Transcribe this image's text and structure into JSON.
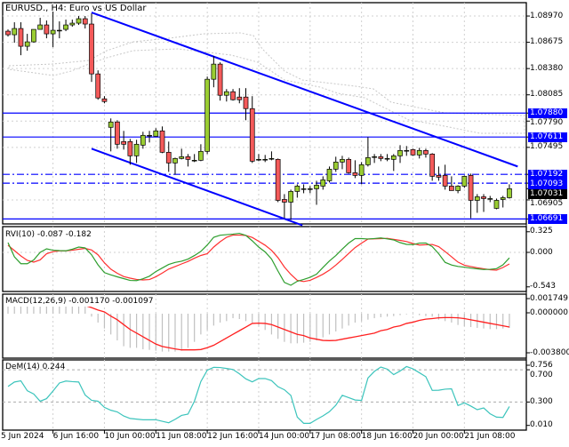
{
  "title": "EURUSD., H4:  Euro vs US Dollar",
  "colors": {
    "bull": "#9acd32",
    "bear": "#f45a5a",
    "trend": "#0000ff",
    "rvi_main": "#2e9e2e",
    "rvi_signal": "#ff3030",
    "macd_hist": "#c0c0c0",
    "macd_signal": "#ff2020",
    "dem": "#3cc4bc",
    "grid": "#d0d0d0",
    "cloud": "#c8c8c8"
  },
  "chart_data": [
    {
      "type": "candlestick",
      "name": "EURUSD., H4",
      "ohlc": [
        [
          1.088,
          1.0882,
          1.0874,
          1.0876
        ],
        [
          1.0876,
          1.089,
          1.0867,
          1.0883
        ],
        [
          1.0883,
          1.089,
          1.0853,
          1.0863
        ],
        [
          1.0863,
          1.0877,
          1.0858,
          1.0868
        ],
        [
          1.0868,
          1.0882,
          1.0867,
          1.0882
        ],
        [
          1.0882,
          1.0895,
          1.0882,
          1.0887
        ],
        [
          1.0887,
          1.0892,
          1.0872,
          1.0877
        ],
        [
          1.0877,
          1.0902,
          1.0862,
          1.0881
        ],
        [
          1.0881,
          1.0891,
          1.0872,
          1.0881
        ],
        [
          1.0882,
          1.0893,
          1.088,
          1.0887
        ],
        [
          1.0887,
          1.0893,
          1.0885,
          1.0889
        ],
        [
          1.0889,
          1.0897,
          1.0887,
          1.0894
        ],
        [
          1.0894,
          1.0897,
          1.0883,
          1.0888
        ],
        [
          1.0888,
          1.09,
          1.0823,
          1.0832
        ],
        [
          1.0832,
          1.0836,
          1.0803,
          1.0805
        ],
        [
          1.0804,
          1.0807,
          1.0799,
          1.0801
        ],
        [
          1.0772,
          1.0782,
          1.0745,
          1.0778
        ],
        [
          1.0778,
          1.078,
          1.0748,
          1.0753
        ],
        [
          1.0756,
          1.0768,
          1.0747,
          1.0753
        ],
        [
          1.0756,
          1.0759,
          1.073,
          1.074
        ],
        [
          1.074,
          1.0758,
          1.0732,
          1.0753
        ],
        [
          1.0752,
          1.0767,
          1.0748,
          1.0763
        ],
        [
          1.0763,
          1.0768,
          1.0755,
          1.0763
        ],
        [
          1.0762,
          1.0771,
          1.0762,
          1.0768
        ],
        [
          1.0768,
          1.0773,
          1.0743,
          1.0744
        ],
        [
          1.0744,
          1.0756,
          1.0722,
          1.0732
        ],
        [
          1.0732,
          1.0738,
          1.0719,
          1.0737
        ],
        [
          1.0737,
          1.0748,
          1.0736,
          1.0739
        ],
        [
          1.0739,
          1.0742,
          1.0728,
          1.0736
        ],
        [
          1.0735,
          1.0742,
          1.0733,
          1.0735
        ],
        [
          1.0735,
          1.0753,
          1.0734,
          1.0745
        ],
        [
          1.0745,
          1.0829,
          1.0742,
          1.0826
        ],
        [
          1.0826,
          1.0852,
          1.0817,
          1.0843
        ],
        [
          1.0843,
          1.0845,
          1.0802,
          1.0808
        ],
        [
          1.0808,
          1.0815,
          1.0801,
          1.0812
        ],
        [
          1.0812,
          1.0815,
          1.0802,
          1.0803
        ],
        [
          1.0806,
          1.0816,
          1.0799,
          1.0803
        ],
        [
          1.0806,
          1.0816,
          1.078,
          1.0793
        ],
        [
          1.0793,
          1.0807,
          1.0732,
          1.0734
        ],
        [
          1.0736,
          1.0742,
          1.0734,
          1.0736
        ],
        [
          1.0736,
          1.0741,
          1.0733,
          1.0736
        ],
        [
          1.0737,
          1.0745,
          1.0735,
          1.0737
        ],
        [
          1.0736,
          1.0737,
          1.0688,
          1.069
        ],
        [
          1.0691,
          1.0697,
          1.067,
          1.0688
        ],
        [
          1.0688,
          1.0702,
          1.0668,
          1.07
        ],
        [
          1.07,
          1.0708,
          1.0693,
          1.0706
        ],
        [
          1.0703,
          1.0708,
          1.0698,
          1.0703
        ],
        [
          1.0703,
          1.0706,
          1.0698,
          1.0703
        ],
        [
          1.0703,
          1.0712,
          1.0685,
          1.0707
        ],
        [
          1.0706,
          1.0717,
          1.0702,
          1.0713
        ],
        [
          1.0712,
          1.0728,
          1.071,
          1.0725
        ],
        [
          1.0725,
          1.0739,
          1.0722,
          1.0733
        ],
        [
          1.0733,
          1.074,
          1.0725,
          1.0736
        ],
        [
          1.0736,
          1.0738,
          1.072,
          1.0721
        ],
        [
          1.0721,
          1.0735,
          1.0715,
          1.0718
        ],
        [
          1.0718,
          1.0733,
          1.0708,
          1.073
        ],
        [
          1.073,
          1.0761,
          1.0728,
          1.0738
        ],
        [
          1.0739,
          1.0742,
          1.0732,
          1.0739
        ],
        [
          1.0739,
          1.0742,
          1.0734,
          1.0737
        ],
        [
          1.0737,
          1.0742,
          1.0734,
          1.0737
        ],
        [
          1.0736,
          1.0742,
          1.0723,
          1.074
        ],
        [
          1.074,
          1.0752,
          1.0732,
          1.0746
        ],
        [
          1.0746,
          1.0751,
          1.074,
          1.0746
        ],
        [
          1.0747,
          1.0748,
          1.074,
          1.0741
        ],
        [
          1.0741,
          1.0749,
          1.0737,
          1.0746
        ],
        [
          1.0746,
          1.0748,
          1.0738,
          1.0742
        ],
        [
          1.0742,
          1.0743,
          1.0712,
          1.0717
        ],
        [
          1.0718,
          1.0728,
          1.0712,
          1.0716
        ],
        [
          1.0718,
          1.073,
          1.0702,
          1.0706
        ],
        [
          1.0706,
          1.0717,
          1.0701,
          1.0701
        ],
        [
          1.0701,
          1.0707,
          1.0698,
          1.0706
        ],
        [
          1.0706,
          1.0718,
          1.0704,
          1.0717
        ],
        [
          1.0718,
          1.072,
          1.067,
          1.069
        ],
        [
          1.069,
          1.0697,
          1.0676,
          1.0694
        ],
        [
          1.0694,
          1.0697,
          1.0677,
          1.0692
        ],
        [
          1.0692,
          1.0695,
          1.0688,
          1.0692
        ],
        [
          1.0681,
          1.0692,
          1.068,
          1.069
        ],
        [
          1.0691,
          1.0695,
          1.0682,
          1.0693
        ],
        [
          1.0693,
          1.0708,
          1.0692,
          1.07031
        ]
      ],
      "y_ticks": [
        "1.08970",
        "1.08675",
        "1.08380",
        "1.08085",
        "1.07790",
        "1.07495",
        "1.06905"
      ],
      "horizontal_levels": [
        {
          "price": "1.07880",
          "style": "solid"
        },
        {
          "price": "1.07611",
          "style": "solid"
        },
        {
          "price": "1.07192",
          "style": "dashdot"
        },
        {
          "price": "1.07093",
          "style": "dashdot"
        },
        {
          "price": "1.06691",
          "style": "solid"
        }
      ],
      "current_price": "1.07031",
      "trendlines": [
        {
          "from_bar": 13,
          "from_price": 1.0901,
          "to_bar": 79.3,
          "to_price": 1.0728
        },
        {
          "from_bar": 13,
          "from_price": 1.0748,
          "to_bar": 45.8,
          "to_price": 1.0662
        }
      ],
      "grid": true
    },
    {
      "type": "line",
      "label": "RVI(10) -0.087 -0.182",
      "y_ticks": [
        "0.325",
        "0.000",
        "-0.543"
      ],
      "series": [
        {
          "values": [
            0.154,
            -0.07,
            -0.178,
            -0.178,
            -0.119,
            0.0,
            0.056,
            0.034,
            0.028,
            0.025,
            0.05,
            0.084,
            0.07,
            -0.038,
            -0.196,
            -0.319,
            -0.354,
            -0.385,
            -0.413,
            -0.442,
            -0.445,
            -0.416,
            -0.375,
            -0.302,
            -0.246,
            -0.19,
            -0.158,
            -0.139,
            -0.106,
            -0.05,
            0.015,
            0.116,
            0.238,
            0.27,
            0.279,
            0.288,
            0.3,
            0.267,
            0.182,
            0.084,
            0.007,
            -0.105,
            -0.294,
            -0.473,
            -0.518,
            -0.455,
            -0.426,
            -0.393,
            -0.343,
            -0.237,
            -0.136,
            -0.05,
            0.052,
            0.147,
            0.217,
            0.217,
            0.211,
            0.218,
            0.227,
            0.213,
            0.196,
            0.154,
            0.126,
            0.122,
            0.146,
            0.147,
            0.092,
            -0.021,
            -0.157,
            -0.199,
            -0.221,
            -0.234,
            -0.248,
            -0.259,
            -0.27,
            -0.267,
            -0.256,
            -0.196,
            -0.087
          ]
        },
        {
          "values": [
            0.112,
            0.028,
            -0.056,
            -0.126,
            -0.154,
            -0.118,
            -0.022,
            0.011,
            0.024,
            0.024,
            0.034,
            0.049,
            0.063,
            0.038,
            -0.038,
            -0.164,
            -0.265,
            -0.329,
            -0.381,
            -0.406,
            -0.426,
            -0.434,
            -0.428,
            -0.384,
            -0.326,
            -0.263,
            -0.223,
            -0.182,
            -0.143,
            -0.092,
            -0.049,
            -0.021,
            0.084,
            0.168,
            0.237,
            0.272,
            0.272,
            0.267,
            0.235,
            0.175,
            0.113,
            0.032,
            -0.083,
            -0.231,
            -0.346,
            -0.44,
            -0.459,
            -0.44,
            -0.395,
            -0.344,
            -0.281,
            -0.2,
            -0.111,
            -0.017,
            0.076,
            0.146,
            0.21,
            0.213,
            0.216,
            0.22,
            0.206,
            0.189,
            0.171,
            0.14,
            0.116,
            0.12,
            0.125,
            0.09,
            0.013,
            -0.069,
            -0.153,
            -0.202,
            -0.223,
            -0.242,
            -0.258,
            -0.273,
            -0.28,
            -0.238,
            -0.182
          ]
        }
      ]
    },
    {
      "type": "bar+line",
      "label": "MACD(12,26,9) -0.001170 -0.001097",
      "y_ticks": [
        "0.001749",
        "0.000000",
        "-0.003800"
      ],
      "histogram": [
        0.0006,
        0.0006,
        0.0006,
        0.0006,
        0.0006,
        0.0006,
        0.0006,
        0.0006,
        0.0006,
        0.0006,
        0.0006,
        0.0006,
        0.0006,
        -0.00024,
        -0.00073,
        -0.00122,
        -0.00171,
        -0.0022,
        -0.00268,
        -0.00281,
        -0.00281,
        -0.00293,
        -0.00298,
        -0.00305,
        -0.00312,
        -0.00312,
        -0.00312,
        -0.00305,
        -0.00281,
        -0.00232,
        -0.00171,
        -0.00134,
        -0.00098,
        -0.00073,
        -0.00061,
        -0.00037,
        -0.00044,
        -0.00061,
        -0.00073,
        -0.00098,
        -0.00134,
        -0.00171,
        -0.00207,
        -0.00232,
        -0.00244,
        -0.00244,
        -0.00239,
        -0.00232,
        -0.0022,
        -0.00195,
        -0.00171,
        -0.00146,
        -0.00122,
        -0.00098,
        -0.00073,
        -0.00061,
        -0.00049,
        -0.00037,
        -0.00029,
        -0.00024,
        -0.0002,
        -0.00012,
        -5e-05,
        -5e-05,
        -0.00012,
        -0.0002,
        -0.00024,
        -0.00049,
        -0.00061,
        -0.00073,
        -0.00093,
        -0.00102,
        -0.0011,
        -0.00117,
        -0.00122,
        -0.00127,
        -0.00127,
        -0.00122,
        -0.00117
      ],
      "signal": [
        0.00068,
        0.00068,
        0.00068,
        0.00068,
        0.00068,
        0.00068,
        0.00068,
        0.00068,
        0.00068,
        0.00068,
        0.00068,
        0.00068,
        0.00068,
        0.0005,
        0.0003,
        0.00015,
        -0.0002,
        -0.0005,
        -0.0009,
        -0.0013,
        -0.0016,
        -0.0019,
        -0.0022,
        -0.0025,
        -0.0027,
        -0.0028,
        -0.0029,
        -0.00298,
        -0.00298,
        -0.00298,
        -0.00295,
        -0.0028,
        -0.0026,
        -0.0023,
        -0.002,
        -0.0017,
        -0.0014,
        -0.0011,
        -0.0008,
        -0.00078,
        -0.0008,
        -0.0009,
        -0.0011,
        -0.0013,
        -0.0015,
        -0.0017,
        -0.0018,
        -0.002,
        -0.0021,
        -0.0022,
        -0.00222,
        -0.0022,
        -0.0021,
        -0.002,
        -0.0019,
        -0.0018,
        -0.0017,
        -0.0016,
        -0.0014,
        -0.0013,
        -0.0011,
        -0.001,
        -0.0008,
        -0.0007,
        -0.00055,
        -0.00045,
        -0.0004,
        -0.00034,
        -0.00032,
        -0.00032,
        -0.00034,
        -0.0004,
        -0.0005,
        -0.0006,
        -0.0007,
        -0.0008,
        -0.0009,
        -0.001,
        -0.001097
      ]
    },
    {
      "type": "line",
      "label": "DeM(14) 0.244",
      "y_ticks": [
        "0.756",
        "0.700",
        "0.300",
        "0.010"
      ],
      "levels": [
        0.7,
        0.3
      ],
      "values": [
        0.493,
        0.548,
        0.563,
        0.44,
        0.4,
        0.31,
        0.342,
        0.437,
        0.536,
        0.56,
        0.553,
        0.548,
        0.387,
        0.321,
        0.31,
        0.234,
        0.198,
        0.177,
        0.127,
        0.096,
        0.088,
        0.08,
        0.08,
        0.08,
        0.061,
        0.043,
        0.085,
        0.134,
        0.15,
        0.31,
        0.554,
        0.695,
        0.73,
        0.728,
        0.716,
        0.703,
        0.65,
        0.587,
        0.55,
        0.591,
        0.591,
        0.565,
        0.49,
        0.452,
        0.382,
        0.113,
        0.036,
        0.036,
        0.084,
        0.128,
        0.18,
        0.26,
        0.383,
        0.354,
        0.325,
        0.32,
        0.598,
        0.68,
        0.734,
        0.708,
        0.64,
        0.685,
        0.74,
        0.711,
        0.663,
        0.614,
        0.444,
        0.446,
        0.459,
        0.464,
        0.256,
        0.29,
        0.25,
        0.205,
        0.226,
        0.154,
        0.113,
        0.109,
        0.244
      ]
    }
  ],
  "time_axis": {
    "labels": [
      {
        "text": "5 Jun 2024",
        "bar": -1
      },
      {
        "text": "6 Jun 16:00",
        "bar": 7
      },
      {
        "text": "10 Jun 00:00",
        "bar": 15
      },
      {
        "text": "11 Jun 08:00",
        "bar": 23
      },
      {
        "text": "12 Jun 16:00",
        "bar": 31
      },
      {
        "text": "14 Jun 00:00",
        "bar": 39
      },
      {
        "text": "17 Jun 08:00",
        "bar": 47
      },
      {
        "text": "18 Jun 16:00",
        "bar": 55
      },
      {
        "text": "20 Jun 00:00",
        "bar": 63
      },
      {
        "text": "21 Jun 08:00",
        "bar": 71
      }
    ]
  }
}
